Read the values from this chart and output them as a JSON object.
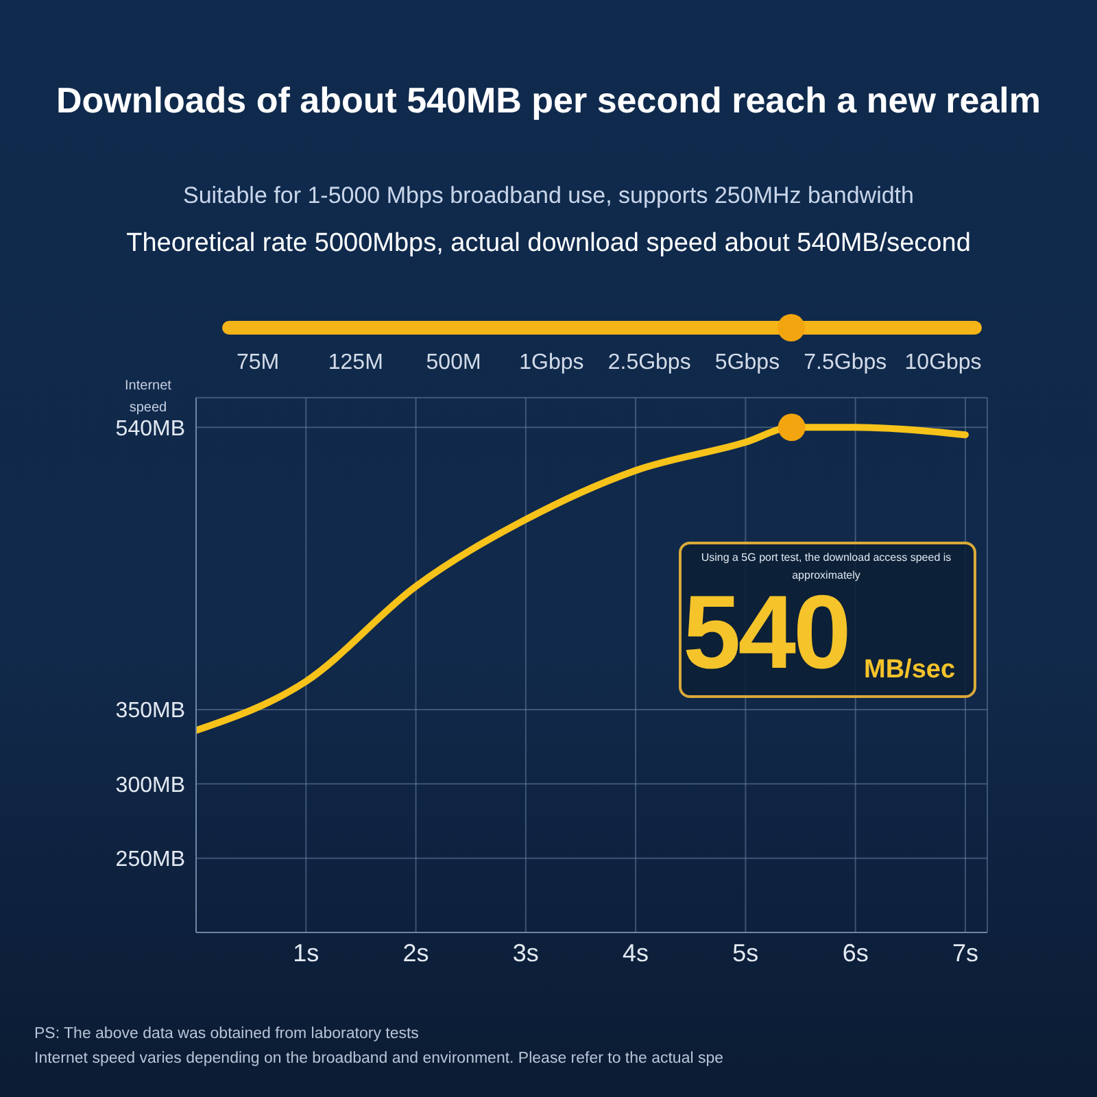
{
  "chart_data": {
    "type": "line",
    "title": "Downloads of about 540MB per second reach a new realm",
    "subtitle": "Suitable for 1-5000 Mbps broadband use, supports 250MHz bandwidth\nTheoretical rate 5000Mbps, actual download speed about 540MB/second",
    "ylabel": "Internet speed",
    "x": [
      0,
      1,
      2,
      3,
      4,
      5,
      5.42,
      6,
      7
    ],
    "series": [
      {
        "color": "#f7c31a",
        "values": [
          336,
          369,
          433,
          478,
          511,
          530,
          540,
          540,
          535
        ],
        "marker": "none"
      },
      {
        "type": "scatter",
        "color": "#f3a50f",
        "x": [
          5.42
        ],
        "values": [
          540
        ],
        "marker": "circle"
      }
    ],
    "xlim": [
      0,
      7.2
    ],
    "xticks": [
      {
        "value": 1,
        "label": "1s"
      },
      {
        "value": 2,
        "label": "2s"
      },
      {
        "value": 3,
        "label": "3s"
      },
      {
        "value": 4,
        "label": "4s"
      },
      {
        "value": 5,
        "label": "5s"
      },
      {
        "value": 6,
        "label": "6s"
      },
      {
        "value": 7,
        "label": "7s"
      }
    ],
    "ylim": [
      200,
      560
    ],
    "yticks": [
      {
        "value": 250,
        "label": "250MB"
      },
      {
        "value": 300,
        "label": "300MB"
      },
      {
        "value": 350,
        "label": "350MB"
      },
      {
        "value": 540,
        "label": "540MB"
      }
    ],
    "grid": true,
    "line_style": "solid",
    "annotations": [
      "Using a 5G port test, the download access speed is approximately",
      "540",
      "MB/sec",
      "75M",
      "125M",
      "500M",
      "1Gbps",
      "2.5Gbps",
      "5Gbps",
      "7.5Gbps",
      "10Gbps",
      "PS: The above data was obtained from laboratory tests",
      "Internet speed varies depending on the broadband and environment. Please refer to the actual spe"
    ]
  }
}
